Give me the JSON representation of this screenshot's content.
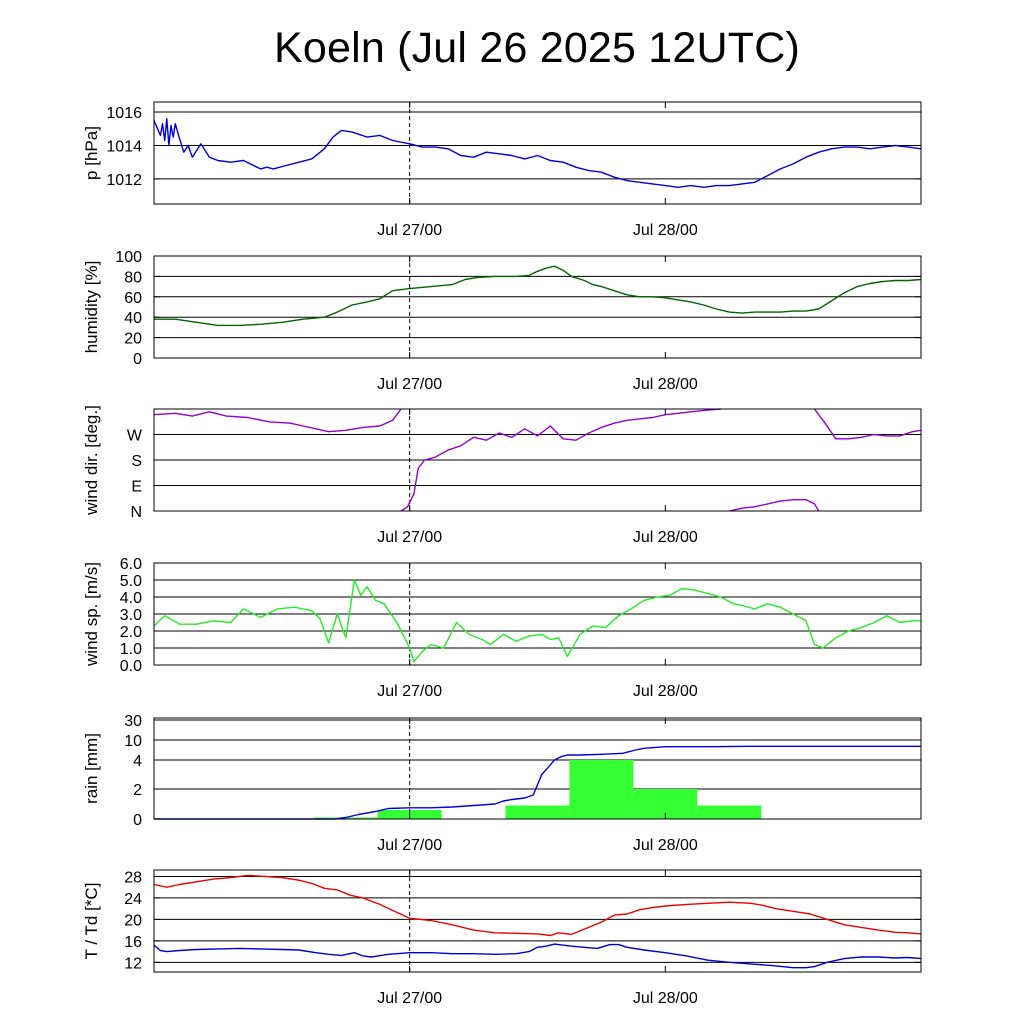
{
  "title": "Koeln (Jul 26 2025 12UTC)",
  "colors": {
    "pressure": "#0000dd",
    "humidity": "#006400",
    "wind_dir": "#9400d3",
    "wind_speed": "#22ee22",
    "rain_line": "#0000dd",
    "rain_bars": "#33ff33",
    "temperature": "#ee0000",
    "dewpoint": "#0000cc"
  },
  "chart_data": [
    {
      "type": "line",
      "ylabel": "p [hPa]",
      "xlim": [
        0,
        36
      ],
      "ylim": [
        1010.5,
        1016.6
      ],
      "yticks": [
        1012,
        1014,
        1016
      ],
      "ytick_labels": [
        "1012",
        "1014",
        "1016"
      ],
      "xticks": [
        12,
        24
      ],
      "xtick_labels": [
        "Jul 27/00",
        "Jul 28/00"
      ],
      "now_x": 12,
      "series": [
        {
          "color_key": "pressure",
          "x": [
            0,
            0.3,
            0.4,
            0.5,
            0.6,
            0.7,
            0.8,
            0.9,
            1.0,
            1.2,
            1.4,
            1.6,
            1.8,
            2.2,
            2.6,
            3.0,
            3.6,
            4.2,
            5.0,
            5.3,
            5.6,
            6.2,
            6.8,
            7.4,
            8.0,
            8.4,
            8.8,
            9.3,
            10.0,
            10.6,
            11.2,
            12.0,
            12.6,
            13.2,
            13.8,
            14.4,
            15.0,
            15.6,
            16.2,
            16.8,
            17.4,
            18.0,
            18.6,
            19.2,
            19.8,
            20.4,
            21.0,
            21.6,
            22.2,
            22.8,
            23.4,
            24.0,
            24.6,
            25.2,
            25.8,
            26.4,
            27.0,
            27.6,
            28.2,
            28.8,
            29.4,
            30.0,
            30.6,
            31.2,
            31.8,
            32.4,
            33.0,
            33.6,
            34.2,
            34.8,
            35.4,
            36.0
          ],
          "y": [
            1015.5,
            1014.6,
            1015.3,
            1014.3,
            1015.6,
            1014.0,
            1015.2,
            1014.5,
            1015.3,
            1014.4,
            1013.6,
            1014.0,
            1013.3,
            1014.1,
            1013.3,
            1013.1,
            1013.0,
            1013.1,
            1012.6,
            1012.7,
            1012.6,
            1012.8,
            1013.0,
            1013.2,
            1013.8,
            1014.5,
            1014.9,
            1014.8,
            1014.5,
            1014.6,
            1014.3,
            1014.1,
            1013.9,
            1013.9,
            1013.8,
            1013.4,
            1013.3,
            1013.6,
            1013.5,
            1013.4,
            1013.2,
            1013.4,
            1013.1,
            1013.0,
            1012.7,
            1012.5,
            1012.4,
            1012.1,
            1011.9,
            1011.8,
            1011.7,
            1011.6,
            1011.5,
            1011.6,
            1011.5,
            1011.6,
            1011.6,
            1011.7,
            1011.8,
            1012.2,
            1012.6,
            1012.9,
            1013.3,
            1013.6,
            1013.8,
            1013.9,
            1013.9,
            1013.8,
            1013.9,
            1014.0,
            1013.9,
            1013.8
          ]
        }
      ]
    },
    {
      "type": "line",
      "ylabel": "humidity [%]",
      "xlim": [
        0,
        36
      ],
      "ylim": [
        0,
        100
      ],
      "yticks": [
        0,
        20,
        40,
        60,
        80,
        100
      ],
      "ytick_labels": [
        "0",
        "20",
        "40",
        "60",
        "80",
        "100"
      ],
      "xticks": [
        12,
        24
      ],
      "xtick_labels": [
        "Jul 27/00",
        "Jul 28/00"
      ],
      "now_x": 12,
      "series": [
        {
          "color_key": "humidity",
          "x": [
            0,
            1,
            2,
            3,
            4,
            5,
            6,
            7,
            8,
            8.6,
            9.3,
            10.0,
            10.6,
            11.2,
            12.0,
            13.0,
            14.0,
            14.6,
            15.2,
            16.0,
            17.0,
            17.6,
            18.0,
            18.4,
            18.8,
            19.2,
            19.6,
            20.2,
            20.6,
            21.0,
            21.6,
            22.2,
            22.8,
            23.4,
            24.0,
            24.6,
            25.2,
            25.8,
            26.4,
            27.0,
            27.6,
            28.2,
            28.8,
            29.4,
            30.0,
            30.6,
            31.2,
            31.8,
            32.4,
            33.0,
            33.6,
            34.2,
            34.8,
            35.4,
            36.0
          ],
          "y": [
            38,
            38,
            35,
            32,
            32,
            33,
            35,
            38,
            40,
            45,
            52,
            55,
            58,
            66,
            68,
            70,
            72,
            77,
            79,
            80,
            80,
            81,
            85,
            88,
            90,
            86,
            80,
            76,
            72,
            70,
            66,
            62,
            60,
            60,
            59,
            57,
            55,
            52,
            48,
            45,
            44,
            45,
            45,
            45,
            46,
            46,
            48,
            56,
            64,
            70,
            73,
            75,
            76,
            76,
            77
          ]
        }
      ]
    },
    {
      "type": "line",
      "ylabel": "wind dir. [deg.]",
      "xlim": [
        0,
        36
      ],
      "ylim": [
        0,
        360
      ],
      "yticks": [
        0,
        90,
        180,
        270
      ],
      "ytick_labels": [
        "N",
        "E",
        "S",
        "W"
      ],
      "xticks": [
        12,
        24
      ],
      "xtick_labels": [
        "Jul 27/00",
        "Jul 28/00"
      ],
      "now_x": 12,
      "series": [
        {
          "color_key": "wind_dir",
          "x": [
            0,
            1,
            1.8,
            2.6,
            3.4,
            4.4,
            5.4,
            6.4,
            7.0,
            7.6,
            8.2,
            9.0,
            9.8,
            10.6,
            11.2,
            11.6
          ],
          "y": [
            340,
            345,
            335,
            350,
            335,
            330,
            315,
            310,
            300,
            290,
            280,
            285,
            295,
            300,
            320,
            360
          ]
        },
        {
          "color_key": "wind_dir",
          "x": [
            11.6,
            11.9,
            12.2,
            12.4,
            12.7,
            13.2,
            13.8,
            14.4,
            15.0,
            15.6,
            16.2,
            16.8,
            17.4,
            18.0,
            18.6,
            19.2,
            19.8,
            20.4,
            21.0,
            21.6,
            22.2,
            22.8,
            23.4,
            24.0,
            24.6,
            25.2,
            25.8,
            26.6
          ],
          "y": [
            0,
            15,
            60,
            150,
            180,
            190,
            215,
            230,
            260,
            250,
            275,
            260,
            290,
            265,
            300,
            255,
            250,
            275,
            295,
            310,
            320,
            325,
            330,
            340,
            345,
            350,
            355,
            360
          ]
        },
        {
          "color_key": "wind_dir",
          "x": [
            27.0,
            27.6,
            28.2,
            28.8,
            29.4,
            30.0,
            30.6,
            31.0,
            31.2
          ],
          "y": [
            0,
            10,
            15,
            25,
            35,
            40,
            40,
            25,
            0
          ]
        },
        {
          "color_key": "wind_dir",
          "x": [
            31.0,
            31.5,
            32.0,
            32.6,
            33.2,
            33.8,
            34.4,
            35.0,
            35.6,
            36.0
          ],
          "y": [
            360,
            310,
            255,
            255,
            260,
            270,
            265,
            265,
            280,
            285
          ]
        }
      ]
    },
    {
      "type": "line",
      "ylabel": "wind sp. [m/s]",
      "xlim": [
        0,
        36
      ],
      "ylim": [
        0,
        6
      ],
      "yticks": [
        0,
        1,
        2,
        3,
        4,
        5,
        6
      ],
      "ytick_labels": [
        "0.0",
        "1.0",
        "2.0",
        "3.0",
        "4.0",
        "5.0",
        "6.0"
      ],
      "xticks": [
        12,
        24
      ],
      "xtick_labels": [
        "Jul 27/00",
        "Jul 28/00"
      ],
      "now_x": 12,
      "series": [
        {
          "color_key": "wind_speed",
          "x": [
            0,
            0.5,
            1.2,
            2.0,
            2.8,
            3.6,
            4.2,
            5.0,
            5.8,
            6.6,
            7.0,
            7.4,
            7.8,
            8.2,
            8.6,
            9.0,
            9.4,
            9.7,
            10.0,
            10.4,
            10.8,
            11.4,
            12.0,
            12.2,
            12.6,
            13.0,
            13.6,
            14.2,
            14.8,
            15.4,
            15.8,
            16.4,
            17.0,
            17.6,
            18.2,
            18.6,
            19.0,
            19.4,
            20.0,
            20.6,
            21.2,
            21.8,
            22.4,
            23.0,
            23.6,
            24.2,
            24.8,
            25.4,
            26.0,
            26.6,
            27.2,
            27.6,
            28.2,
            28.8,
            29.4,
            30.0,
            30.6,
            31.0,
            31.4,
            32.0,
            32.6,
            33.2,
            33.8,
            34.4,
            35.0,
            35.6,
            36.0
          ],
          "y": [
            2.3,
            2.9,
            2.4,
            2.4,
            2.6,
            2.5,
            3.3,
            2.8,
            3.3,
            3.4,
            3.3,
            3.2,
            2.7,
            1.3,
            3.0,
            1.6,
            5.0,
            4.1,
            4.6,
            3.8,
            3.6,
            2.5,
            1.0,
            0.2,
            0.8,
            1.2,
            1.0,
            2.5,
            1.8,
            1.5,
            1.2,
            1.8,
            1.4,
            1.7,
            1.8,
            1.5,
            1.6,
            0.5,
            1.8,
            2.3,
            2.2,
            2.9,
            3.3,
            3.8,
            4.0,
            4.1,
            4.5,
            4.4,
            4.2,
            4.0,
            3.6,
            3.5,
            3.3,
            3.6,
            3.4,
            3.0,
            2.6,
            1.2,
            1.0,
            1.6,
            2.0,
            2.2,
            2.5,
            2.9,
            2.5,
            2.6,
            2.6
          ]
        }
      ]
    },
    {
      "type": "bar",
      "ylabel": "rain [mm]",
      "xlim": [
        0,
        36
      ],
      "scale": "nonlinear",
      "ytick_values": [
        0,
        2,
        4,
        10,
        30
      ],
      "ytick_labels": [
        "0",
        "2",
        "4",
        "10",
        "30"
      ],
      "xticks": [
        12,
        24
      ],
      "xtick_labels": [
        "Jul 27/00",
        "Jul 28/00"
      ],
      "now_x": 12,
      "bars": [
        {
          "x0": 7.5,
          "x1": 10.5,
          "value": 0.1
        },
        {
          "x0": 10.5,
          "x1": 13.5,
          "value": 0.6
        },
        {
          "x0": 16.5,
          "x1": 19.5,
          "value": 0.9
        },
        {
          "x0": 19.5,
          "x1": 22.5,
          "value": 4.0
        },
        {
          "x0": 22.5,
          "x1": 25.5,
          "value": 2.0
        },
        {
          "x0": 25.5,
          "x1": 28.5,
          "value": 0.9
        }
      ],
      "series": [
        {
          "color_key": "rain_line",
          "x": [
            0,
            8.5,
            9.0,
            9.6,
            10.4,
            11.0,
            12.0,
            13.0,
            14.0,
            15.0,
            16.0,
            16.4,
            16.8,
            17.4,
            17.8,
            18.2,
            18.5,
            18.8,
            19.1,
            19.4,
            20.0,
            21.0,
            22.0,
            22.6,
            23.0,
            24.0,
            26.0,
            28.0,
            30.0,
            32.0,
            34.0,
            36.0
          ],
          "y": [
            0,
            0,
            0.1,
            0.3,
            0.5,
            0.7,
            0.75,
            0.75,
            0.8,
            0.9,
            1.0,
            1.2,
            1.3,
            1.4,
            1.6,
            3.0,
            3.5,
            4.0,
            5.0,
            5.5,
            5.5,
            5.7,
            6.0,
            7.0,
            7.5,
            8.0,
            8.0,
            8.1,
            8.1,
            8.1,
            8.1,
            8.1
          ]
        }
      ]
    },
    {
      "type": "line",
      "ylabel": "T / Td [*C]",
      "xlim": [
        0,
        36
      ],
      "ylim": [
        10.2,
        29.2
      ],
      "yticks": [
        12,
        16,
        20,
        24,
        28
      ],
      "ytick_labels": [
        "12",
        "16",
        "20",
        "24",
        "28"
      ],
      "xticks": [
        12,
        24
      ],
      "xtick_labels": [
        "Jul 27/00",
        "Jul 28/00"
      ],
      "now_x": 12,
      "series": [
        {
          "color_key": "temperature",
          "x": [
            0,
            0.6,
            1.2,
            2.0,
            2.8,
            3.6,
            4.4,
            5.2,
            6.0,
            6.8,
            7.4,
            8.0,
            8.6,
            9.2,
            9.8,
            10.6,
            11.4,
            12.0,
            13.0,
            14.0,
            15.0,
            16.0,
            17.0,
            18.0,
            18.6,
            19.0,
            19.6,
            20.4,
            21.0,
            21.6,
            22.2,
            22.8,
            23.4,
            24.0,
            25.0,
            26.0,
            27.0,
            28.0,
            28.6,
            29.2,
            30.0,
            30.8,
            31.6,
            32.4,
            33.2,
            34.0,
            34.8,
            35.4,
            36.0
          ],
          "y": [
            26.5,
            26.0,
            26.5,
            27.0,
            27.5,
            27.8,
            28.2,
            28.0,
            27.8,
            27.3,
            26.7,
            25.8,
            25.5,
            24.5,
            24.0,
            22.8,
            21.3,
            20.2,
            19.8,
            19.0,
            18.0,
            17.5,
            17.4,
            17.3,
            17.0,
            17.5,
            17.2,
            18.5,
            19.5,
            20.8,
            21.0,
            21.8,
            22.2,
            22.5,
            22.8,
            23.0,
            23.2,
            23.0,
            22.6,
            22.0,
            21.5,
            21.0,
            20.0,
            19.0,
            18.5,
            18.0,
            17.6,
            17.5,
            17.3
          ]
        },
        {
          "color_key": "dewpoint",
          "x": [
            0,
            0.3,
            0.6,
            1.2,
            2.0,
            3.0,
            4.0,
            5.0,
            6.0,
            6.8,
            7.6,
            8.2,
            8.8,
            9.4,
            9.8,
            10.2,
            11.0,
            12.0,
            13.0,
            14.0,
            15.0,
            16.0,
            17.0,
            17.6,
            18.0,
            18.4,
            18.8,
            19.6,
            20.2,
            20.8,
            21.4,
            21.8,
            22.2,
            23.0,
            24.0,
            25.0,
            26.0,
            27.0,
            28.0,
            29.0,
            30.0,
            30.6,
            31.0,
            31.6,
            32.4,
            33.2,
            34.0,
            34.8,
            35.4,
            36.0
          ],
          "y": [
            15.2,
            14.2,
            14.0,
            14.2,
            14.4,
            14.5,
            14.6,
            14.5,
            14.4,
            14.3,
            13.8,
            13.5,
            13.3,
            13.8,
            13.2,
            13.0,
            13.5,
            13.8,
            13.8,
            13.6,
            13.6,
            13.5,
            13.6,
            14.0,
            14.8,
            15.0,
            15.4,
            15.0,
            14.8,
            14.6,
            15.3,
            15.3,
            14.8,
            14.3,
            13.8,
            13.2,
            12.4,
            12.0,
            11.7,
            11.4,
            11.0,
            11.0,
            11.2,
            12.0,
            12.7,
            13.0,
            13.0,
            12.8,
            12.9,
            12.7
          ]
        }
      ]
    }
  ]
}
